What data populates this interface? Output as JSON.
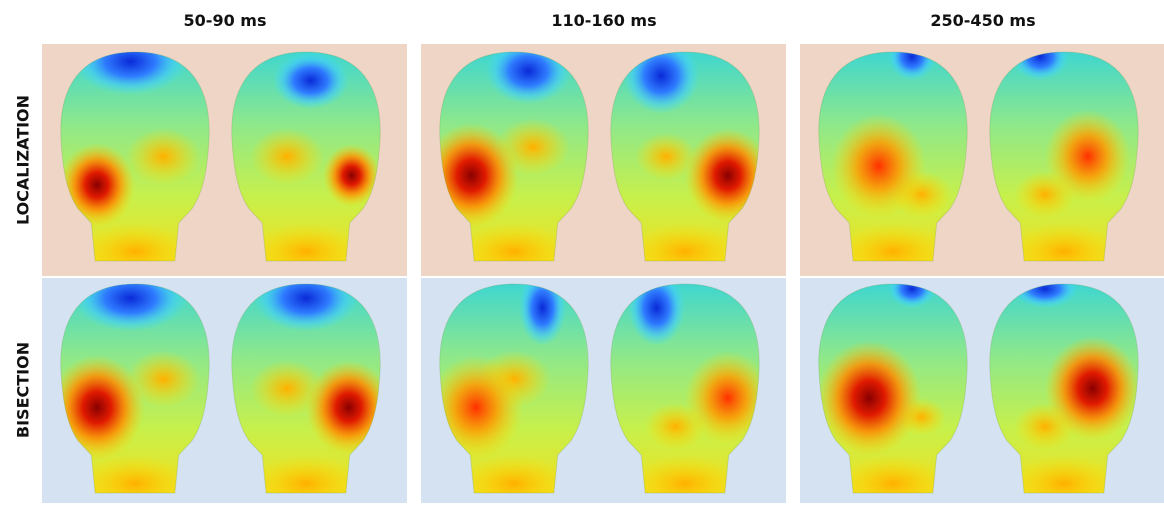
{
  "columns": [
    "50-90 ms",
    "110-160 ms",
    "250-450 ms"
  ],
  "rows": [
    "LOCALIZATION",
    "BISECTION"
  ]
}
